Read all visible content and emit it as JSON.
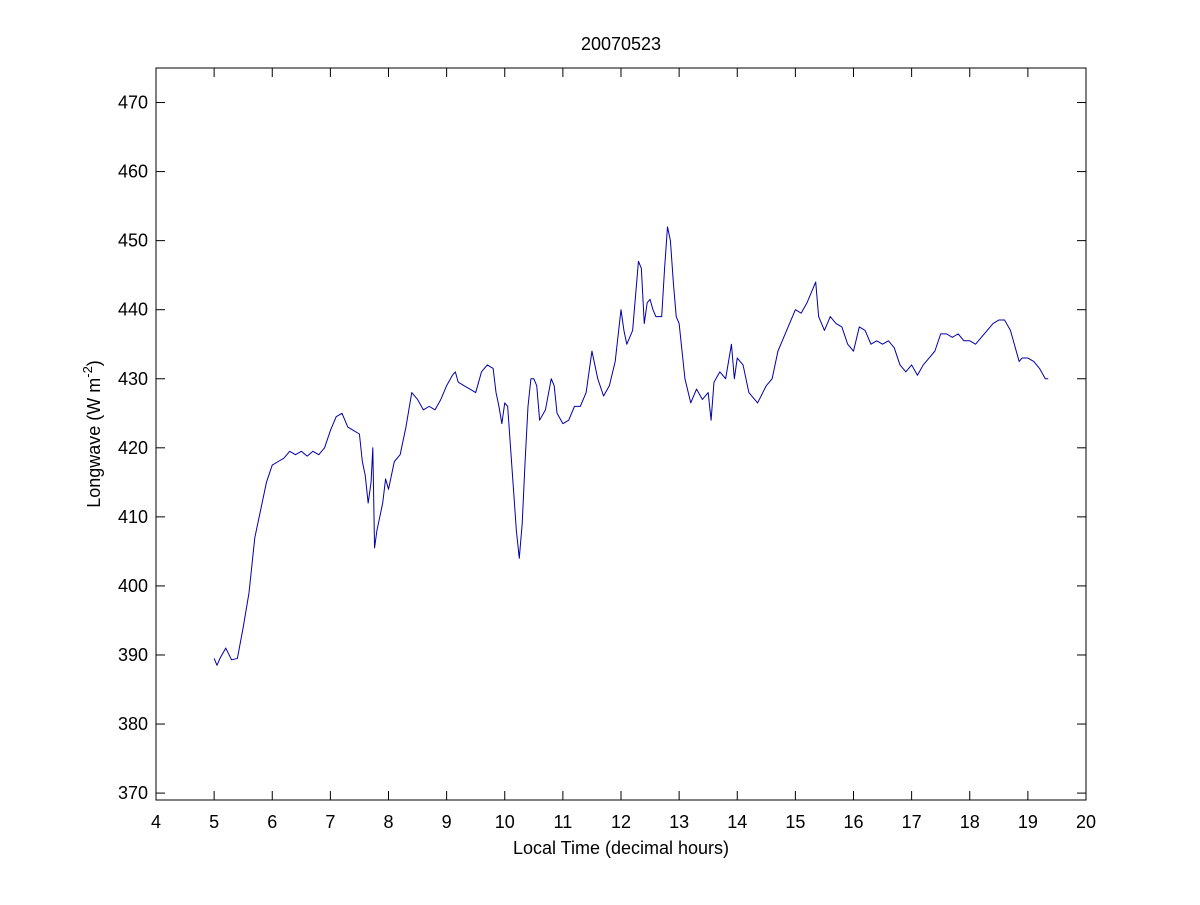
{
  "chart_data": {
    "type": "line",
    "title": "20070523",
    "xlabel": "Local Time (decimal hours)",
    "ylabel": {
      "text": "Longwave (W m",
      "sup": "-2",
      "tail": ")"
    },
    "xlim": [
      4,
      20
    ],
    "xticks": [
      4,
      5,
      6,
      7,
      8,
      9,
      10,
      11,
      12,
      13,
      14,
      15,
      16,
      17,
      18,
      19,
      20
    ],
    "ylim": [
      369,
      475
    ],
    "yticks": [
      370,
      380,
      390,
      400,
      410,
      420,
      430,
      440,
      450,
      460,
      470
    ],
    "grid": false,
    "series": [
      {
        "color": "#0000aa",
        "x": [
          5.0,
          5.05,
          5.1,
          5.2,
          5.3,
          5.4,
          5.5,
          5.6,
          5.7,
          5.8,
          5.9,
          6.0,
          6.1,
          6.2,
          6.3,
          6.4,
          6.5,
          6.6,
          6.7,
          6.8,
          6.9,
          7.0,
          7.1,
          7.2,
          7.3,
          7.4,
          7.5,
          7.55,
          7.6,
          7.65,
          7.7,
          7.73,
          7.76,
          7.8,
          7.9,
          7.95,
          8.0,
          8.1,
          8.2,
          8.3,
          8.4,
          8.5,
          8.6,
          8.7,
          8.8,
          8.9,
          9.0,
          9.1,
          9.15,
          9.2,
          9.3,
          9.4,
          9.5,
          9.6,
          9.7,
          9.8,
          9.85,
          9.9,
          9.95,
          10.0,
          10.05,
          10.1,
          10.15,
          10.2,
          10.25,
          10.3,
          10.35,
          10.4,
          10.45,
          10.5,
          10.55,
          10.6,
          10.7,
          10.8,
          10.85,
          10.9,
          11.0,
          11.1,
          11.2,
          11.3,
          11.4,
          11.5,
          11.6,
          11.7,
          11.8,
          11.9,
          12.0,
          12.05,
          12.1,
          12.2,
          12.3,
          12.35,
          12.4,
          12.45,
          12.5,
          12.55,
          12.6,
          12.7,
          12.75,
          12.8,
          12.85,
          12.9,
          12.95,
          13.0,
          13.05,
          13.1,
          13.2,
          13.3,
          13.4,
          13.5,
          13.55,
          13.6,
          13.7,
          13.8,
          13.9,
          13.95,
          14.0,
          14.1,
          14.2,
          14.3,
          14.35,
          14.5,
          14.6,
          14.7,
          14.8,
          14.9,
          15.0,
          15.1,
          15.2,
          15.3,
          15.35,
          15.4,
          15.5,
          15.6,
          15.7,
          15.8,
          15.9,
          16.0,
          16.1,
          16.2,
          16.3,
          16.4,
          16.5,
          16.6,
          16.7,
          16.8,
          16.9,
          17.0,
          17.1,
          17.2,
          17.3,
          17.4,
          17.5,
          17.6,
          17.7,
          17.8,
          17.9,
          18.0,
          18.1,
          18.2,
          18.3,
          18.4,
          18.5,
          18.6,
          18.7,
          18.8,
          18.85,
          18.9,
          19.0,
          19.1,
          19.2,
          19.3,
          19.35
        ],
        "values": [
          389.5,
          388.5,
          389.5,
          391,
          389.3,
          389.5,
          394,
          399,
          407,
          411,
          415,
          417.5,
          418,
          418.5,
          419.5,
          419,
          419.5,
          418.8,
          419.5,
          419,
          420,
          422.5,
          424.5,
          425,
          423,
          422.5,
          422,
          418,
          416,
          412,
          415,
          420,
          405.5,
          408,
          412,
          415.5,
          414,
          418,
          419,
          423,
          428,
          427,
          425.5,
          426,
          425.5,
          427,
          429,
          430.5,
          431,
          429.5,
          429,
          428.5,
          428,
          431,
          432,
          431.5,
          428,
          426,
          423.5,
          426.5,
          426,
          420,
          414,
          408,
          404,
          409,
          418,
          426,
          430,
          430,
          429,
          424,
          425.5,
          430,
          429,
          425,
          423.5,
          424,
          426,
          426,
          428,
          434,
          430,
          427.5,
          429,
          432.5,
          440,
          437,
          435,
          437,
          447,
          446,
          438,
          441,
          441.5,
          440,
          439,
          439,
          446,
          452,
          450,
          444,
          439,
          438,
          434,
          430,
          426.5,
          428.5,
          427,
          428,
          424,
          429.5,
          431,
          430,
          435,
          430,
          433,
          432,
          428,
          427,
          426.5,
          429,
          430,
          434,
          436,
          438,
          440,
          439.5,
          441,
          443,
          444,
          439,
          437,
          439,
          438,
          437.5,
          435,
          434,
          437.5,
          437,
          435,
          435.5,
          435,
          435.5,
          434.5,
          432,
          431,
          432,
          430.5,
          432,
          433,
          434,
          436.5,
          436.5,
          436,
          436.5,
          435.5,
          435.5,
          435,
          436,
          437,
          438,
          438.5,
          438.5,
          437,
          434,
          432.5,
          433,
          433,
          432.5,
          431.5,
          430,
          430
        ]
      }
    ]
  }
}
